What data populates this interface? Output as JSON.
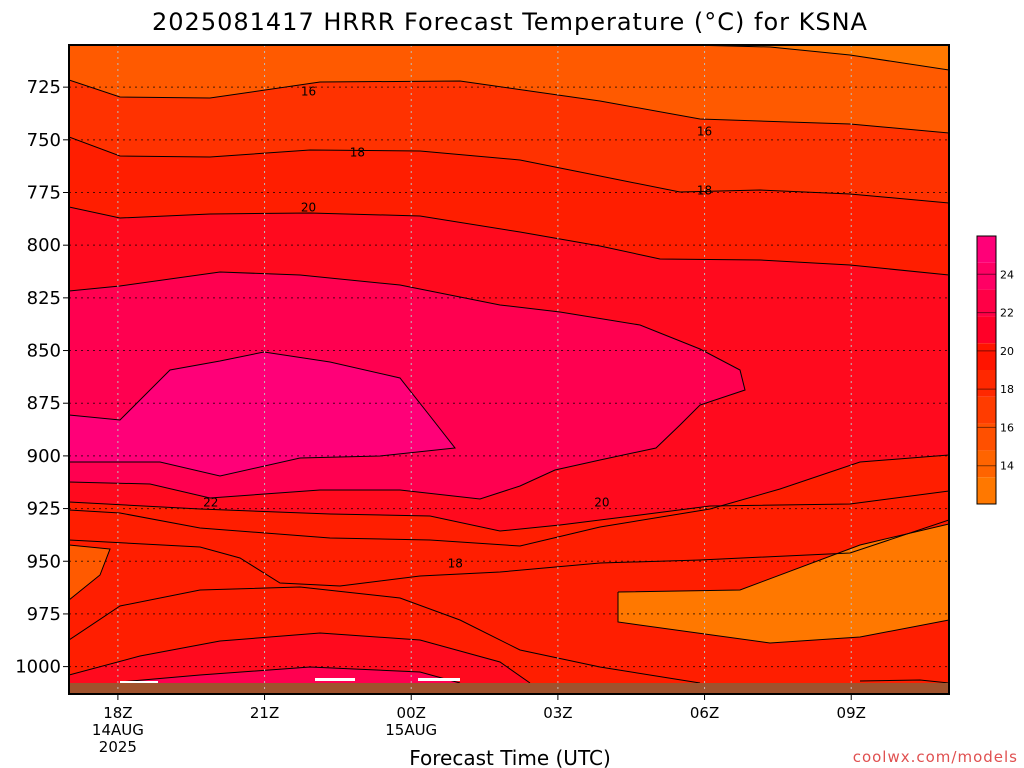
{
  "chart_data": {
    "type": "heatmap",
    "title": "2025081417 HRRR Forecast Temperature (°C) for KSNA",
    "xlabel": "Forecast Time (UTC)",
    "ylabel": "",
    "credit": "coolwx.com/models",
    "x_ticks": [
      {
        "label": "18Z",
        "label2": "14AUG",
        "label3": "2025",
        "hour": 0
      },
      {
        "label": "21Z",
        "label2": "",
        "label3": "",
        "hour": 3
      },
      {
        "label": "00Z",
        "label2": "15AUG",
        "label3": "",
        "hour": 6
      },
      {
        "label": "03Z",
        "label2": "",
        "label3": "",
        "hour": 9
      },
      {
        "label": "06Z",
        "label2": "",
        "label3": "",
        "hour": 12
      },
      {
        "label": "09Z",
        "label2": "",
        "label3": "",
        "hour": 15
      }
    ],
    "xlim": [
      -1,
      17
    ],
    "y_ticks": [
      725,
      750,
      775,
      800,
      825,
      850,
      875,
      900,
      925,
      950,
      975,
      1000
    ],
    "ylim": [
      1013,
      705
    ],
    "grid": true,
    "colorbar": {
      "ticks": [
        14,
        16,
        18,
        20,
        22,
        24
      ],
      "levels": [
        12,
        13,
        14,
        15,
        16,
        17,
        18,
        19,
        20,
        21,
        22,
        23,
        24,
        25,
        26
      ],
      "colors": [
        "#ff7800",
        "#ff6400",
        "#ff5000",
        "#ff3c00",
        "#ff2800",
        "#ff1400",
        "#ff0028",
        "#ff0046",
        "#ff0064",
        "#ff0078"
      ]
    },
    "band_colors": {
      "14": "#ff7800",
      "16": "#ff5a00",
      "18": "#ff3200",
      "20": "#ff0a1e",
      "22": "#ff0050",
      "24": "#ff0078"
    },
    "ground_color": "#a0522d",
    "contour_labels": [
      {
        "text": "16",
        "hour": 3.9,
        "p": 727
      },
      {
        "text": "16",
        "hour": 12.0,
        "p": 746
      },
      {
        "text": "18",
        "hour": 4.9,
        "p": 756
      },
      {
        "text": "18",
        "hour": 12.0,
        "p": 774
      },
      {
        "text": "20",
        "hour": 3.9,
        "p": 782
      },
      {
        "text": "20",
        "hour": 9.9,
        "p": 922
      },
      {
        "text": "22",
        "hour": 1.9,
        "p": 922
      },
      {
        "text": "18",
        "hour": 6.9,
        "p": 951
      }
    ]
  }
}
